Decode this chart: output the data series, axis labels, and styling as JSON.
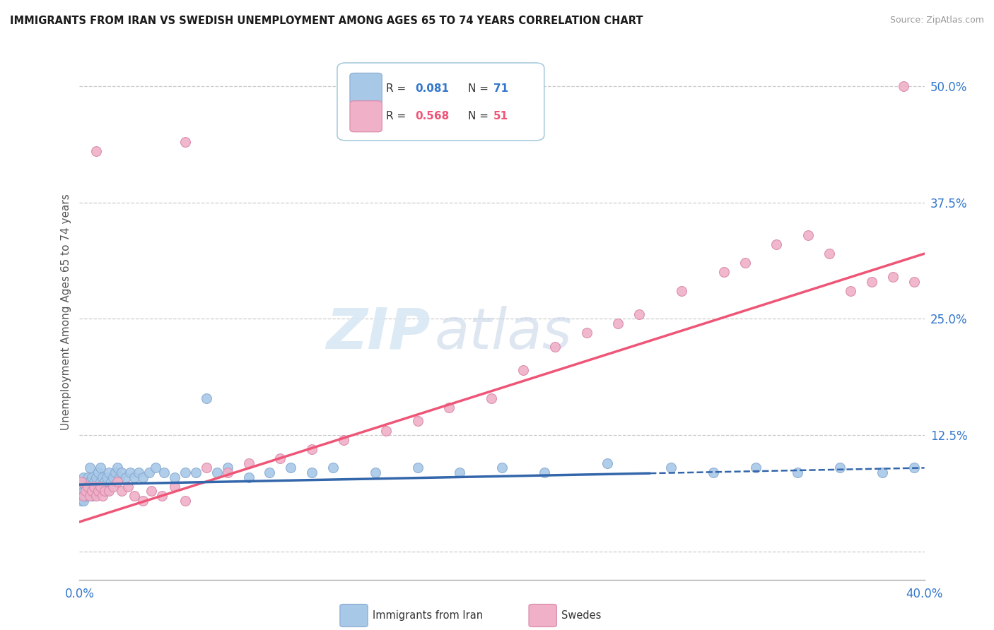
{
  "title": "IMMIGRANTS FROM IRAN VS SWEDISH UNEMPLOYMENT AMONG AGES 65 TO 74 YEARS CORRELATION CHART",
  "source": "Source: ZipAtlas.com",
  "ylabel": "Unemployment Among Ages 65 to 74 years",
  "x_min": 0.0,
  "x_max": 0.4,
  "y_min": -0.03,
  "y_max": 0.545,
  "y_ticks_right": [
    0.0,
    0.125,
    0.25,
    0.375,
    0.5
  ],
  "y_tick_labels_right": [
    "",
    "12.5%",
    "25.0%",
    "37.5%",
    "50.0%"
  ],
  "background_color": "#ffffff",
  "grid_color": "#cccccc",
  "blue_color": "#a8c8e8",
  "pink_color": "#f0b0c8",
  "blue_line_color": "#3366aa",
  "pink_line_color": "#ee5577",
  "watermark_zip": "ZIP",
  "watermark_atlas": "atlas",
  "blue_scatter_x": [
    0.001,
    0.001,
    0.001,
    0.002,
    0.002,
    0.002,
    0.002,
    0.003,
    0.003,
    0.003,
    0.004,
    0.004,
    0.004,
    0.005,
    0.005,
    0.005,
    0.006,
    0.006,
    0.006,
    0.007,
    0.007,
    0.008,
    0.008,
    0.009,
    0.009,
    0.01,
    0.01,
    0.011,
    0.011,
    0.012,
    0.013,
    0.013,
    0.014,
    0.015,
    0.016,
    0.017,
    0.018,
    0.019,
    0.02,
    0.022,
    0.024,
    0.026,
    0.028,
    0.03,
    0.033,
    0.036,
    0.04,
    0.045,
    0.05,
    0.055,
    0.06,
    0.065,
    0.07,
    0.08,
    0.09,
    0.1,
    0.11,
    0.12,
    0.14,
    0.16,
    0.18,
    0.2,
    0.22,
    0.25,
    0.28,
    0.3,
    0.32,
    0.34,
    0.36,
    0.38,
    0.395
  ],
  "blue_scatter_y": [
    0.06,
    0.07,
    0.055,
    0.065,
    0.075,
    0.055,
    0.08,
    0.065,
    0.07,
    0.06,
    0.075,
    0.06,
    0.08,
    0.065,
    0.075,
    0.09,
    0.06,
    0.07,
    0.08,
    0.065,
    0.075,
    0.07,
    0.08,
    0.065,
    0.085,
    0.075,
    0.09,
    0.07,
    0.08,
    0.075,
    0.065,
    0.08,
    0.085,
    0.075,
    0.08,
    0.085,
    0.09,
    0.08,
    0.085,
    0.08,
    0.085,
    0.08,
    0.085,
    0.08,
    0.085,
    0.09,
    0.085,
    0.08,
    0.085,
    0.085,
    0.165,
    0.085,
    0.09,
    0.08,
    0.085,
    0.09,
    0.085,
    0.09,
    0.085,
    0.09,
    0.085,
    0.09,
    0.085,
    0.095,
    0.09,
    0.085,
    0.09,
    0.085,
    0.09,
    0.085,
    0.09
  ],
  "pink_scatter_x": [
    0.001,
    0.002,
    0.003,
    0.004,
    0.005,
    0.006,
    0.007,
    0.008,
    0.009,
    0.01,
    0.011,
    0.012,
    0.014,
    0.016,
    0.018,
    0.02,
    0.023,
    0.026,
    0.03,
    0.034,
    0.039,
    0.045,
    0.05,
    0.06,
    0.07,
    0.08,
    0.095,
    0.11,
    0.125,
    0.145,
    0.16,
    0.175,
    0.195,
    0.21,
    0.225,
    0.24,
    0.255,
    0.265,
    0.285,
    0.305,
    0.315,
    0.33,
    0.345,
    0.355,
    0.365,
    0.375,
    0.385,
    0.395,
    0.008,
    0.05,
    0.39
  ],
  "pink_scatter_y": [
    0.075,
    0.06,
    0.065,
    0.07,
    0.06,
    0.065,
    0.07,
    0.06,
    0.065,
    0.07,
    0.06,
    0.065,
    0.065,
    0.07,
    0.075,
    0.065,
    0.07,
    0.06,
    0.055,
    0.065,
    0.06,
    0.07,
    0.055,
    0.09,
    0.085,
    0.095,
    0.1,
    0.11,
    0.12,
    0.13,
    0.14,
    0.155,
    0.165,
    0.195,
    0.22,
    0.235,
    0.245,
    0.255,
    0.28,
    0.3,
    0.31,
    0.33,
    0.34,
    0.32,
    0.28,
    0.29,
    0.295,
    0.29,
    0.43,
    0.44,
    0.5
  ],
  "blue_trend_start_x": 0.0,
  "blue_trend_end_solid_x": 0.27,
  "blue_trend_end_x": 0.4,
  "blue_trend_start_y": 0.072,
  "blue_trend_end_y": 0.09,
  "pink_trend_start_x": 0.0,
  "pink_trend_end_x": 0.4,
  "pink_trend_start_y": 0.032,
  "pink_trend_end_y": 0.32
}
